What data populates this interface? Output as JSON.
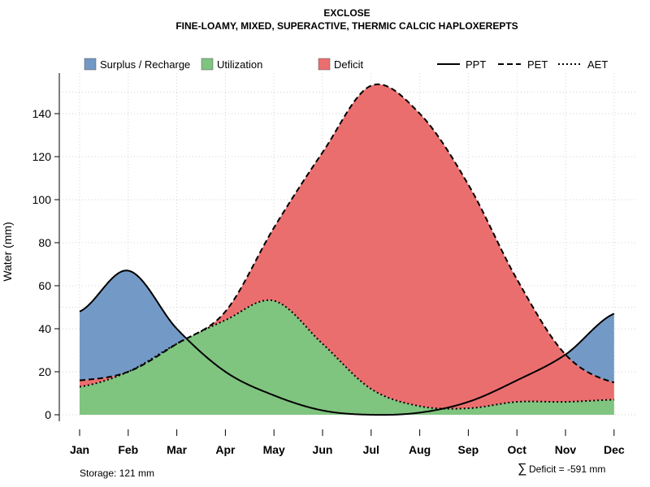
{
  "chart_data": {
    "type": "area",
    "title": "EXCLOSE",
    "subtitle": "FINE-LOAMY, MIXED, SUPERACTIVE, THERMIC CALCIC HAPLOXEREPTS",
    "xlabel": "",
    "ylabel": "Water (mm)",
    "categories": [
      "Jan",
      "Feb",
      "Mar",
      "Apr",
      "May",
      "Jun",
      "Jul",
      "Aug",
      "Sep",
      "Oct",
      "Nov",
      "Dec"
    ],
    "ylim": [
      -3,
      158
    ],
    "yticks": [
      0,
      20,
      40,
      60,
      80,
      100,
      120,
      140
    ],
    "grid": true,
    "series": [
      {
        "name": "PPT",
        "style": "solid",
        "values": [
          48,
          67,
          40,
          20,
          9,
          2,
          0,
          1,
          6,
          16,
          28,
          47
        ]
      },
      {
        "name": "PET",
        "style": "dashed",
        "values": [
          16,
          20,
          33,
          48,
          87,
          122,
          153,
          140,
          107,
          63,
          28,
          15
        ]
      },
      {
        "name": "AET",
        "style": "dotted",
        "values": [
          13,
          20,
          33,
          44,
          53,
          33,
          12,
          4,
          3,
          6,
          6,
          7
        ]
      }
    ],
    "fill_legend": [
      {
        "name": "Surplus / Recharge",
        "color": "#7399c6"
      },
      {
        "name": "Utilization",
        "color": "#7fc47f"
      },
      {
        "name": "Deficit",
        "color": "#eb6e6e"
      }
    ],
    "annotations": {
      "storage": "Storage: 121 mm",
      "deficit_symbol": "∑",
      "deficit": "Deficit = -591 mm"
    }
  }
}
